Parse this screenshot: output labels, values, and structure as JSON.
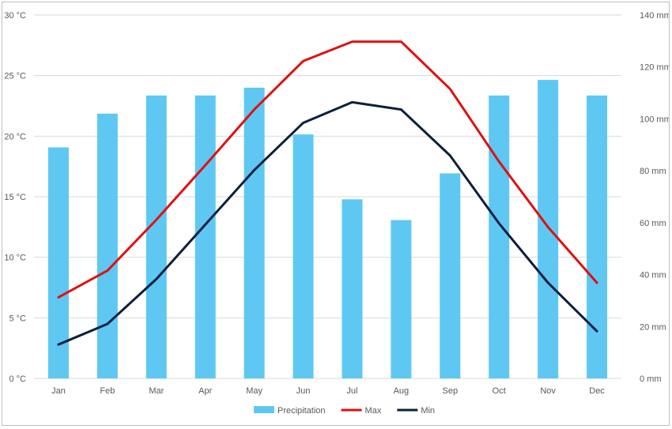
{
  "chart_data": {
    "type": "bar",
    "categories": [
      "Jan",
      "Feb",
      "Mar",
      "Apr",
      "May",
      "Jun",
      "Jul",
      "Aug",
      "Sep",
      "Oct",
      "Nov",
      "Dec"
    ],
    "series": [
      {
        "name": "Precipitation",
        "kind": "bar",
        "axis": "right",
        "values": [
          89,
          102,
          109,
          109,
          112,
          94,
          69,
          61,
          79,
          109,
          115,
          109
        ]
      },
      {
        "name": "Max",
        "kind": "line",
        "axis": "left",
        "values": [
          6.7,
          8.9,
          13.1,
          17.6,
          22.2,
          26.2,
          27.8,
          27.8,
          23.9,
          17.9,
          12.5,
          7.9
        ]
      },
      {
        "name": "Min",
        "kind": "line",
        "axis": "left",
        "values": [
          2.8,
          4.5,
          8.2,
          12.7,
          17.2,
          21.1,
          22.8,
          22.2,
          18.4,
          12.8,
          7.9,
          3.9
        ]
      }
    ],
    "y_left": {
      "min": 0,
      "max": 30,
      "step": 5,
      "unit": "°C"
    },
    "y_right": {
      "min": 0,
      "max": 140,
      "step": 20,
      "unit": "mm"
    },
    "grid": true,
    "legend_position": "bottom",
    "colors": {
      "Precipitation": "#5ec8f2",
      "Max": "#e01010",
      "Min": "#0d1f3c",
      "grid": "#d9d9d9"
    }
  }
}
